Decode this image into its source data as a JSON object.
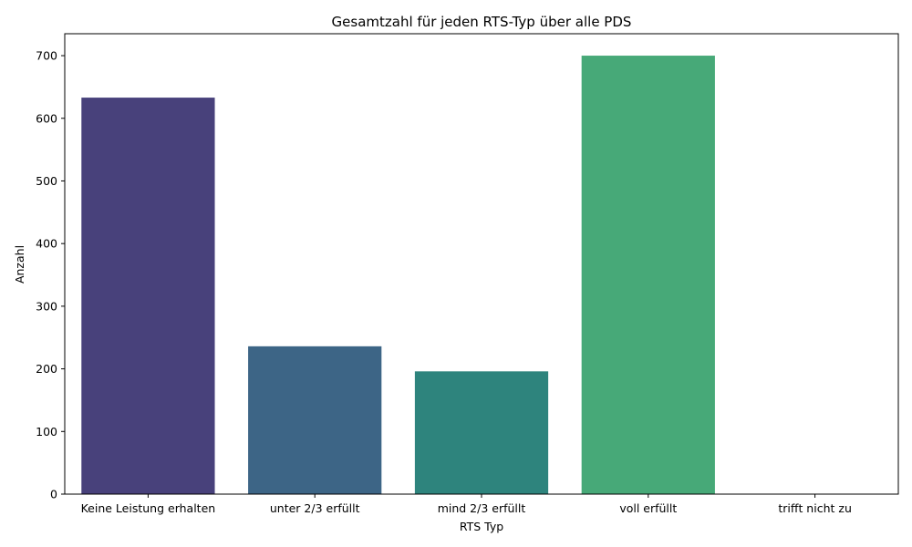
{
  "chart_data": {
    "type": "bar",
    "title": "Gesamtzahl für jeden RTS-Typ über alle PDS",
    "xlabel": "RTS Typ",
    "ylabel": "Anzahl",
    "categories": [
      "Keine Leistung erhalten",
      "unter 2/3 erfüllt",
      "mind 2/3 erfüllt",
      "voll erfüllt",
      "trifft nicht zu"
    ],
    "values": [
      633,
      236,
      196,
      700,
      0
    ],
    "colors": [
      "#48417b",
      "#3d6586",
      "#2e847d",
      "#47a978",
      "#9ed06a"
    ],
    "ylim": [
      0,
      735
    ],
    "yticks": [
      0,
      100,
      200,
      300,
      400,
      500,
      600,
      700
    ],
    "grid": false,
    "legend": "none"
  }
}
